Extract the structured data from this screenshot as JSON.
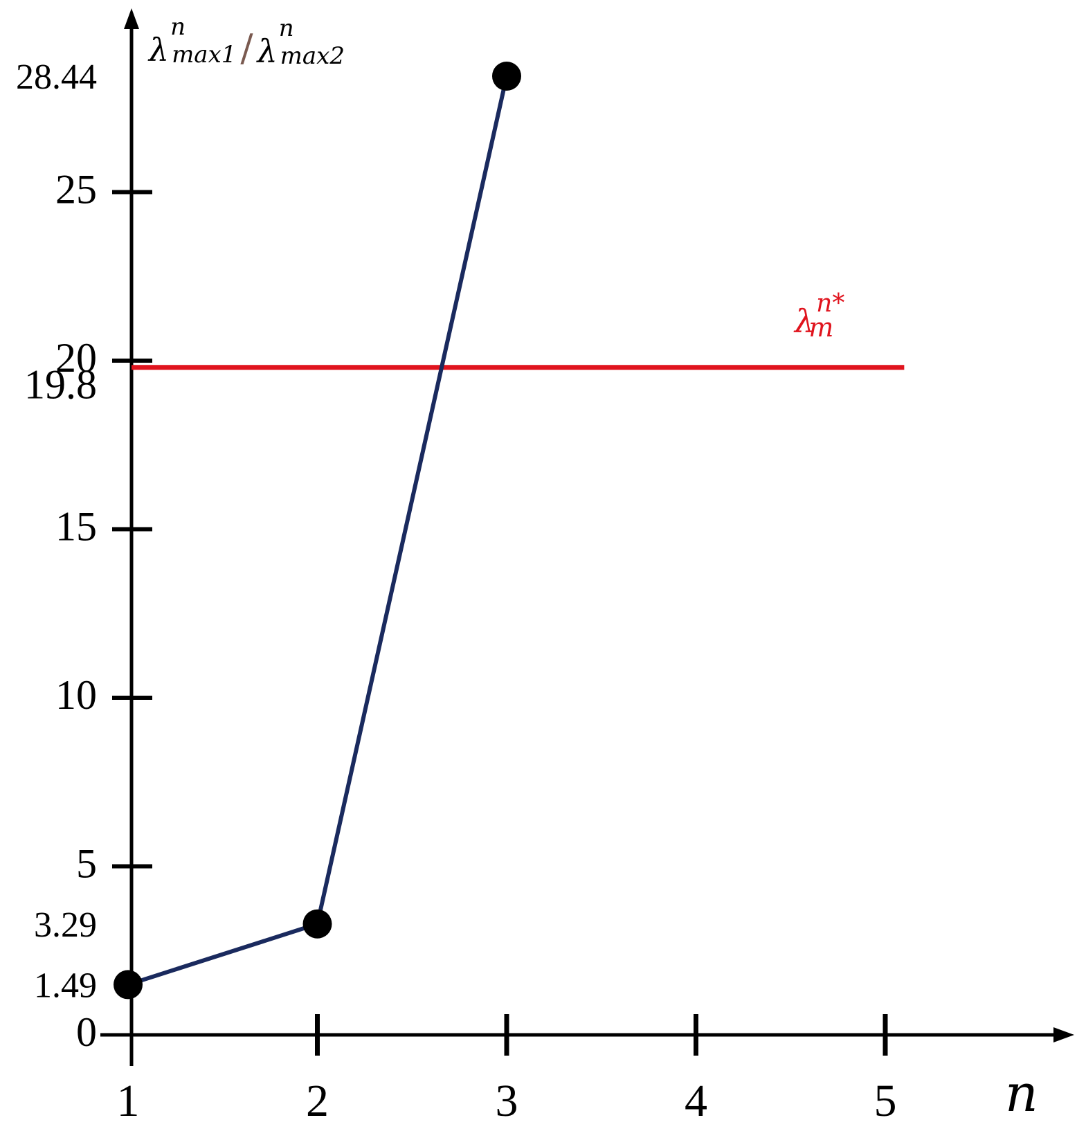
{
  "chart_data": {
    "type": "line",
    "xlabel": "n",
    "ylabel": {
      "lambda": "λ",
      "sup": "n",
      "sub_left": "max1",
      "slash": "/",
      "sub_right": "max2"
    },
    "x_ticks": [
      "1",
      "2",
      "3",
      "4",
      "5"
    ],
    "y_ticks": [
      "0",
      "5",
      "10",
      "15",
      "20",
      "25"
    ],
    "xlim": [
      1,
      5.8
    ],
    "ylim": [
      0,
      30
    ],
    "grid": false,
    "series": [
      {
        "points": [
          {
            "x": 1,
            "y": 1.49,
            "label": "1.49"
          },
          {
            "x": 2,
            "y": 3.29,
            "label": "3.29"
          },
          {
            "x": 3,
            "y": 28.44,
            "label": "28.44"
          }
        ],
        "color": "#1a2a5e"
      }
    ],
    "reference_line": {
      "y": 19.8,
      "value_label": "19.8",
      "x_end": 5.1,
      "color": "#e0141e",
      "annotation": {
        "lambda": "λ",
        "sub": "m",
        "sup": "n*"
      }
    }
  }
}
